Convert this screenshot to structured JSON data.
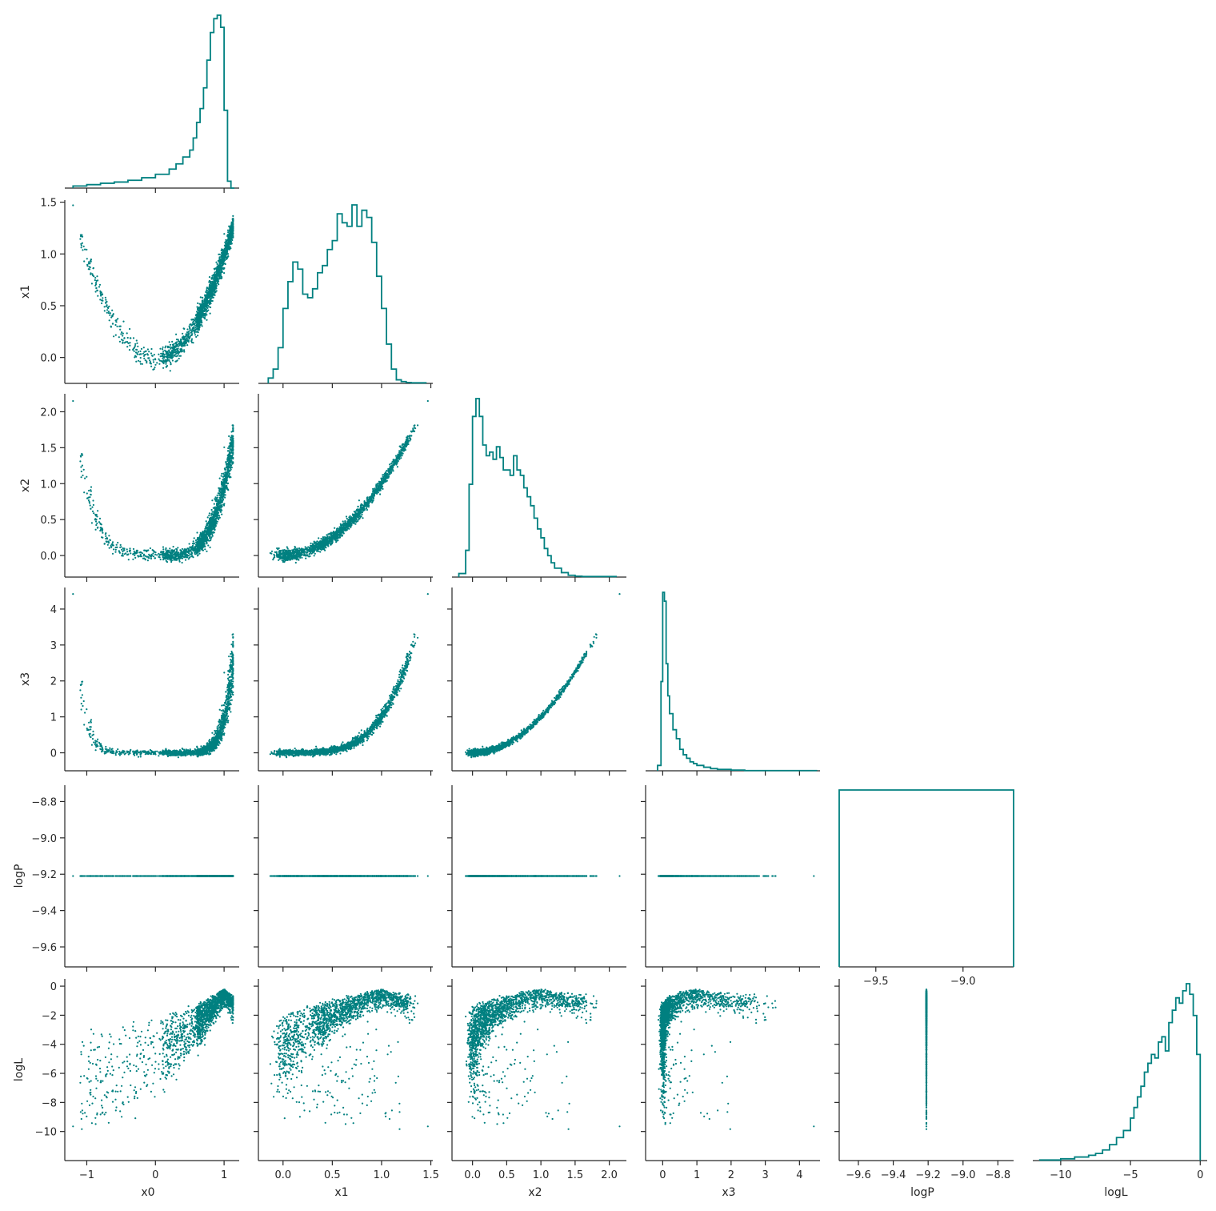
{
  "chart_data": {
    "type": "scatter",
    "title": "",
    "grid": false,
    "colors": {
      "series": "#008080",
      "axis": "#262626"
    },
    "variables": [
      {
        "name": "x0",
        "range": [
          -1.32,
          1.22
        ],
        "ticks": [
          -1,
          0,
          1
        ],
        "tick_labels": [
          "−1",
          "0",
          "1"
        ]
      },
      {
        "name": "x1",
        "range": [
          -0.25,
          1.52
        ],
        "ticks": [
          0.0,
          0.5,
          1.0,
          1.5
        ],
        "tick_labels": [
          "0.0",
          "0.5",
          "1.0",
          "1.5"
        ]
      },
      {
        "name": "x2",
        "range": [
          -0.3,
          2.25
        ],
        "ticks": [
          0.0,
          0.5,
          1.0,
          1.5,
          2.0
        ],
        "tick_labels": [
          "0.0",
          "0.5",
          "1.0",
          "1.5",
          "2.0"
        ]
      },
      {
        "name": "x3",
        "range": [
          -0.5,
          4.6
        ],
        "ticks": [
          0,
          1,
          2,
          3,
          4
        ],
        "tick_labels": [
          "0",
          "1",
          "2",
          "3",
          "4"
        ]
      },
      {
        "name": "logP",
        "range": [
          -9.71,
          -8.71
        ],
        "ticks": [
          -9.6,
          -9.4,
          -9.2,
          -9.0,
          -8.8
        ],
        "tick_labels": [
          "−9.6",
          "−9.4",
          "−9.2",
          "−9.0",
          "−8.8"
        ]
      },
      {
        "name": "logL",
        "range": [
          -12.0,
          0.5
        ],
        "ticks": [
          -10,
          -8,
          -6,
          -4,
          -2,
          0
        ],
        "tick_labels": [
          "−10",
          "−8",
          "−6",
          "−4",
          "−2",
          "0"
        ]
      }
    ],
    "histogram_x_ticks": {
      "logP": {
        "ticks": [
          -9.5,
          -9.0
        ],
        "tick_labels": [
          "−9.5",
          "−9.0"
        ]
      },
      "logL": {
        "ticks": [
          -10,
          -5,
          0
        ],
        "tick_labels": [
          "−10",
          "−5",
          "0"
        ]
      }
    },
    "constant_logP_value": -9.21,
    "histograms": {
      "x0": {
        "edges": [
          -1.2,
          -1.0,
          -0.8,
          -0.6,
          -0.4,
          -0.2,
          0.0,
          0.2,
          0.3,
          0.4,
          0.5,
          0.55,
          0.6,
          0.65,
          0.7,
          0.75,
          0.8,
          0.85,
          0.9,
          0.95,
          1.0,
          1.05,
          1.1,
          1.15
        ],
        "counts": [
          0.012,
          0.02,
          0.028,
          0.035,
          0.045,
          0.06,
          0.08,
          0.11,
          0.14,
          0.18,
          0.22,
          0.29,
          0.38,
          0.46,
          0.58,
          0.74,
          0.9,
          0.98,
          1.0,
          0.93,
          0.45,
          0.04,
          0.0
        ]
      },
      "x1": {
        "edges": [
          -0.15,
          -0.1,
          -0.05,
          0.0,
          0.05,
          0.1,
          0.15,
          0.2,
          0.25,
          0.3,
          0.35,
          0.4,
          0.45,
          0.5,
          0.55,
          0.6,
          0.65,
          0.7,
          0.75,
          0.8,
          0.85,
          0.9,
          0.95,
          1.0,
          1.05,
          1.1,
          1.15,
          1.2,
          1.25,
          1.3,
          1.45
        ],
        "counts": [
          0.03,
          0.08,
          0.2,
          0.42,
          0.57,
          0.68,
          0.64,
          0.5,
          0.48,
          0.53,
          0.62,
          0.66,
          0.75,
          0.8,
          0.95,
          0.9,
          0.88,
          1.0,
          0.88,
          0.97,
          0.93,
          0.79,
          0.6,
          0.42,
          0.22,
          0.08,
          0.02,
          0.01,
          0.005,
          0.003
        ]
      },
      "x2": {
        "edges": [
          -0.2,
          -0.1,
          -0.05,
          0.0,
          0.05,
          0.1,
          0.15,
          0.2,
          0.25,
          0.3,
          0.35,
          0.4,
          0.45,
          0.5,
          0.55,
          0.6,
          0.65,
          0.7,
          0.75,
          0.8,
          0.85,
          0.9,
          0.95,
          1.0,
          1.05,
          1.1,
          1.15,
          1.2,
          1.3,
          1.4,
          1.5,
          1.6,
          2.1
        ],
        "counts": [
          0.02,
          0.15,
          0.52,
          0.9,
          1.0,
          0.9,
          0.74,
          0.68,
          0.7,
          0.66,
          0.73,
          0.67,
          0.6,
          0.6,
          0.57,
          0.68,
          0.6,
          0.57,
          0.5,
          0.45,
          0.4,
          0.33,
          0.27,
          0.22,
          0.16,
          0.12,
          0.08,
          0.05,
          0.025,
          0.01,
          0.005,
          0.003
        ]
      },
      "x3": {
        "edges": [
          -0.15,
          -0.05,
          0.0,
          0.05,
          0.1,
          0.15,
          0.2,
          0.3,
          0.4,
          0.5,
          0.6,
          0.7,
          0.8,
          0.9,
          1.0,
          1.2,
          1.4,
          1.6,
          2.0,
          2.4,
          4.5
        ],
        "counts": [
          0.03,
          0.5,
          1.0,
          0.95,
          0.6,
          0.42,
          0.32,
          0.23,
          0.18,
          0.12,
          0.09,
          0.07,
          0.05,
          0.04,
          0.03,
          0.02,
          0.012,
          0.008,
          0.004,
          0.001
        ]
      },
      "logP": {
        "edges": [
          -9.71,
          -8.71
        ],
        "counts": [
          1.0
        ]
      },
      "logL": {
        "edges": [
          -11.5,
          -10,
          -9,
          -8,
          -7.5,
          -7,
          -6.5,
          -6,
          -5.5,
          -5,
          -4.75,
          -4.5,
          -4.25,
          -4,
          -3.75,
          -3.5,
          -3.25,
          -3,
          -2.75,
          -2.5,
          -2.25,
          -2,
          -1.75,
          -1.5,
          -1.25,
          -1,
          -0.75,
          -0.5,
          -0.25,
          0
        ],
        "counts": [
          0.003,
          0.01,
          0.02,
          0.03,
          0.04,
          0.06,
          0.09,
          0.13,
          0.17,
          0.24,
          0.3,
          0.36,
          0.42,
          0.5,
          0.55,
          0.6,
          0.58,
          0.67,
          0.7,
          0.62,
          0.78,
          0.85,
          0.92,
          0.89,
          0.96,
          1.0,
          0.94,
          0.82,
          0.6
        ]
      }
    }
  }
}
